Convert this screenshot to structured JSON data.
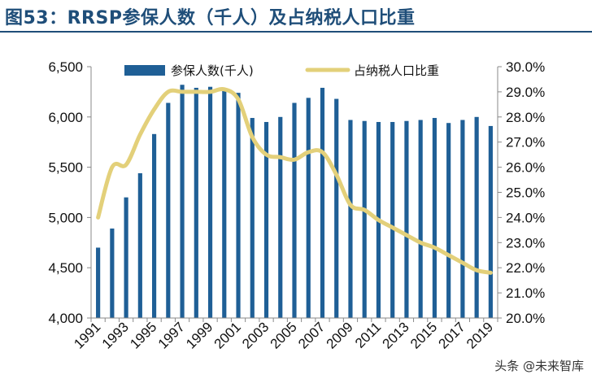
{
  "title": "图53：RRSP参保人数（千人）及占纳税人口比重",
  "watermark": "头条 @未来智库",
  "colors": {
    "bar": "#1f5f96",
    "line": "#e3d07a",
    "title": "#1f4e79"
  },
  "chart_data": {
    "type": "bar",
    "categories": [
      "1991",
      "1992",
      "1993",
      "1994",
      "1995",
      "1996",
      "1997",
      "1998",
      "1999",
      "2000",
      "2001",
      "2002",
      "2003",
      "2004",
      "2005",
      "2006",
      "2007",
      "2008",
      "2009",
      "2010",
      "2011",
      "2012",
      "2013",
      "2014",
      "2015",
      "2016",
      "2017",
      "2018",
      "2019"
    ],
    "x_tick_labels": [
      "1991",
      "1993",
      "1995",
      "1997",
      "1999",
      "2001",
      "2003",
      "2005",
      "2007",
      "2009",
      "2011",
      "2013",
      "2015",
      "2017",
      "2019"
    ],
    "series": [
      {
        "name": "参保人数(千人)",
        "type": "bar",
        "axis": "left",
        "values": [
          4700,
          4890,
          5200,
          5440,
          5830,
          6140,
          6320,
          6290,
          6300,
          6280,
          6240,
          5990,
          5950,
          6000,
          6140,
          6190,
          6290,
          6180,
          5970,
          5960,
          5950,
          5950,
          5960,
          5970,
          5990,
          5940,
          5970,
          6000,
          5910
        ]
      },
      {
        "name": "占纳税人口比重",
        "type": "line",
        "axis": "right",
        "values": [
          24.0,
          26.0,
          26.1,
          27.3,
          28.3,
          29.0,
          29.0,
          29.0,
          29.0,
          29.1,
          28.7,
          27.2,
          26.5,
          26.4,
          26.3,
          26.6,
          26.6,
          25.7,
          24.5,
          24.3,
          23.9,
          23.6,
          23.3,
          23.0,
          22.8,
          22.5,
          22.2,
          21.9,
          21.8
        ]
      }
    ],
    "y_left": {
      "min": 4000,
      "max": 6500,
      "ticks": [
        4000,
        4500,
        5000,
        5500,
        6000,
        6500
      ],
      "tick_labels": [
        "4,000",
        "4,500",
        "5,000",
        "5,500",
        "6,000",
        "6,500"
      ]
    },
    "y_right": {
      "min": 20.0,
      "max": 30.0,
      "ticks": [
        20,
        21,
        22,
        23,
        24,
        25,
        26,
        27,
        28,
        29,
        30
      ],
      "tick_labels": [
        "20.0%",
        "21.0%",
        "22.0%",
        "23.0%",
        "24.0%",
        "25.0%",
        "26.0%",
        "27.0%",
        "28.0%",
        "29.0%",
        "30.0%"
      ]
    },
    "legend_position": "top",
    "grid": false
  }
}
